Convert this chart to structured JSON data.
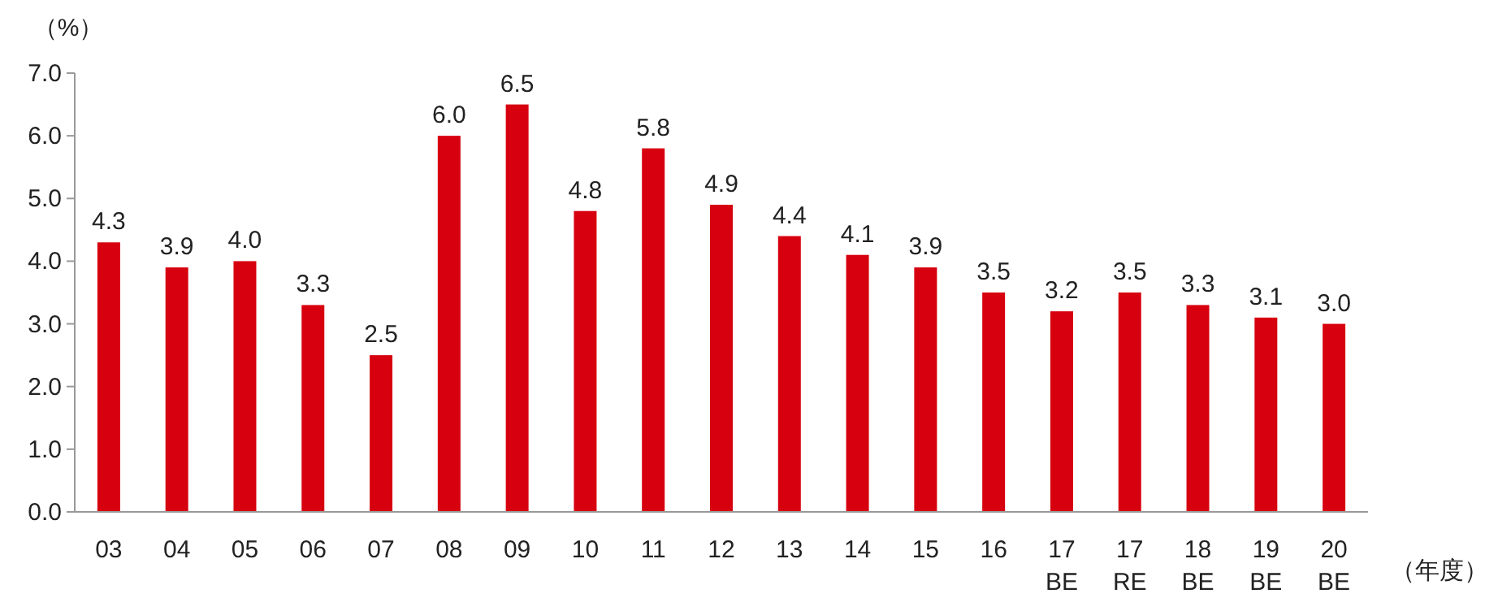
{
  "chart_data": {
    "type": "bar",
    "ylabel": "（%）",
    "xlabel": "（年度）",
    "categories": [
      "03",
      "04",
      "05",
      "06",
      "07",
      "08",
      "09",
      "10",
      "11",
      "12",
      "13",
      "14",
      "15",
      "16",
      "17 BE",
      "17 RE",
      "18 BE",
      "19 BE",
      "20 BE"
    ],
    "values": [
      4.3,
      3.9,
      4.0,
      3.3,
      2.5,
      6.0,
      6.5,
      4.8,
      5.8,
      4.9,
      4.4,
      4.1,
      3.9,
      3.5,
      3.2,
      3.5,
      3.3,
      3.1,
      3.0
    ],
    "value_labels": [
      "4.3",
      "3.9",
      "4.0",
      "3.3",
      "2.5",
      "6.0",
      "6.5",
      "4.8",
      "5.8",
      "4.9",
      "4.4",
      "4.1",
      "3.9",
      "3.5",
      "3.2",
      "3.5",
      "3.3",
      "3.1",
      "3.0"
    ],
    "color": "#d7000f",
    "ylim": [
      0,
      7
    ],
    "yticks": [
      {
        "value": 0,
        "label": "0.0"
      },
      {
        "value": 1,
        "label": "1.0"
      },
      {
        "value": 2,
        "label": "2.0"
      },
      {
        "value": 3,
        "label": "3.0"
      },
      {
        "value": 4,
        "label": "4.0"
      },
      {
        "value": 5,
        "label": "5.0"
      },
      {
        "value": 6,
        "label": "6.0"
      },
      {
        "value": 7,
        "label": "7.0"
      }
    ],
    "grid": false
  }
}
